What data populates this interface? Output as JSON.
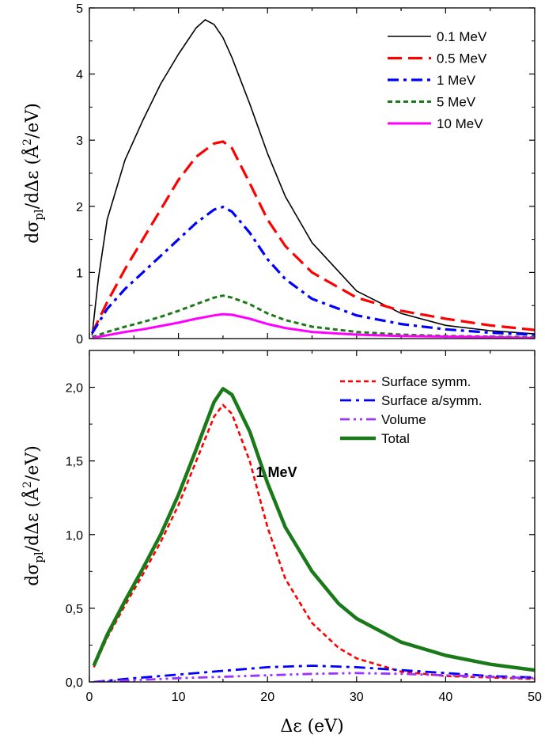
{
  "chart_data": [
    {
      "type": "line",
      "ylabel": "dσ_pl/dΔε (Å²/eV)",
      "xlim": [
        0,
        50
      ],
      "ylim": [
        0,
        5
      ],
      "yticks": [
        "0",
        "1",
        "2",
        "3",
        "4",
        "5"
      ],
      "legend_position": "top-right",
      "series": [
        {
          "name": "0.1 MeV",
          "color": "#000000",
          "dash": "solid",
          "x": [
            0.3,
            1,
            2,
            4,
            6,
            8,
            10,
            12,
            13,
            14,
            15,
            16,
            18,
            20,
            22,
            25,
            30,
            35,
            40,
            45,
            50
          ],
          "y": [
            0.05,
            0.9,
            1.8,
            2.7,
            3.3,
            3.85,
            4.3,
            4.7,
            4.82,
            4.75,
            4.55,
            4.25,
            3.55,
            2.8,
            2.15,
            1.45,
            0.72,
            0.38,
            0.2,
            0.12,
            0.07
          ]
        },
        {
          "name": "0.5 MeV",
          "color": "#ff0000",
          "dash": "dash",
          "x": [
            0.3,
            2,
            4,
            6,
            8,
            10,
            12,
            14,
            15,
            16,
            18,
            20,
            22,
            25,
            30,
            35,
            40,
            45,
            50
          ],
          "y": [
            0.08,
            0.55,
            1.05,
            1.5,
            1.95,
            2.4,
            2.75,
            2.95,
            2.98,
            2.88,
            2.35,
            1.8,
            1.4,
            1.0,
            0.62,
            0.42,
            0.3,
            0.2,
            0.13
          ]
        },
        {
          "name": "1 MeV",
          "color": "#0000ff",
          "dash": "dashdot",
          "x": [
            0.3,
            2,
            4,
            6,
            8,
            10,
            12,
            14,
            15,
            16,
            18,
            20,
            22,
            25,
            30,
            35,
            40,
            45,
            50
          ],
          "y": [
            0.08,
            0.45,
            0.75,
            1.0,
            1.25,
            1.5,
            1.75,
            1.95,
            1.99,
            1.92,
            1.6,
            1.2,
            0.9,
            0.6,
            0.35,
            0.22,
            0.14,
            0.09,
            0.06
          ]
        },
        {
          "name": "5 MeV",
          "color": "#1a7a1a",
          "dash": "shortdash",
          "x": [
            0.3,
            2,
            4,
            6,
            8,
            10,
            12,
            14,
            15,
            16,
            18,
            20,
            22,
            25,
            30,
            35,
            40,
            45,
            50
          ],
          "y": [
            0.02,
            0.1,
            0.18,
            0.25,
            0.33,
            0.42,
            0.52,
            0.62,
            0.65,
            0.62,
            0.52,
            0.38,
            0.28,
            0.18,
            0.1,
            0.06,
            0.04,
            0.03,
            0.02
          ]
        },
        {
          "name": "10 MeV",
          "color": "#ff00ff",
          "dash": "solid",
          "x": [
            0.3,
            2,
            4,
            6,
            8,
            10,
            12,
            14,
            15,
            16,
            18,
            20,
            22,
            25,
            30,
            35,
            40,
            45,
            50
          ],
          "y": [
            0.01,
            0.05,
            0.1,
            0.14,
            0.19,
            0.24,
            0.3,
            0.35,
            0.37,
            0.36,
            0.3,
            0.22,
            0.16,
            0.1,
            0.06,
            0.04,
            0.03,
            0.02,
            0.01
          ]
        }
      ]
    },
    {
      "type": "line",
      "xlabel": "Δε (eV)",
      "ylabel": "dσ_pl/dΔε (Å²/eV)",
      "xlim": [
        0,
        50
      ],
      "ylim": [
        0,
        2.25
      ],
      "xticks": [
        "0",
        "10",
        "20",
        "30",
        "40",
        "50"
      ],
      "yticks": [
        "0,0",
        "0,5",
        "1,0",
        "1,5",
        "2,0"
      ],
      "annotation": "1 MeV",
      "legend_position": "top-right",
      "series": [
        {
          "name": "Surface symm.",
          "color": "#ff0000",
          "dash": "shortdash",
          "x": [
            0.5,
            2,
            4,
            6,
            8,
            10,
            12,
            14,
            15,
            16,
            18,
            20,
            22,
            25,
            28,
            30,
            35,
            40,
            45,
            50
          ],
          "y": [
            0.1,
            0.3,
            0.52,
            0.73,
            0.95,
            1.2,
            1.5,
            1.8,
            1.88,
            1.82,
            1.5,
            1.05,
            0.7,
            0.4,
            0.23,
            0.16,
            0.07,
            0.04,
            0.03,
            0.02
          ]
        },
        {
          "name": "Surface a/symm.",
          "color": "#0000ff",
          "dash": "dashdot",
          "x": [
            0.5,
            5,
            10,
            15,
            20,
            25,
            30,
            35,
            40,
            45,
            50
          ],
          "y": [
            0.0,
            0.025,
            0.05,
            0.075,
            0.1,
            0.11,
            0.1,
            0.08,
            0.06,
            0.04,
            0.03
          ]
        },
        {
          "name": "Volume",
          "color": "#9933ff",
          "dash": "dashdotdot",
          "x": [
            0.5,
            5,
            10,
            15,
            20,
            25,
            30,
            35,
            40,
            45,
            50
          ],
          "y": [
            0.0,
            0.012,
            0.025,
            0.035,
            0.045,
            0.055,
            0.06,
            0.055,
            0.045,
            0.035,
            0.025
          ]
        },
        {
          "name": "Total",
          "color": "#1a7a1a",
          "dash": "solid",
          "x": [
            0.5,
            2,
            4,
            6,
            8,
            10,
            12,
            14,
            15,
            16,
            18,
            20,
            22,
            25,
            28,
            30,
            35,
            40,
            45,
            50
          ],
          "y": [
            0.11,
            0.32,
            0.55,
            0.77,
            1.0,
            1.27,
            1.58,
            1.9,
            1.99,
            1.95,
            1.7,
            1.35,
            1.05,
            0.75,
            0.53,
            0.43,
            0.27,
            0.18,
            0.12,
            0.08
          ]
        }
      ]
    }
  ]
}
